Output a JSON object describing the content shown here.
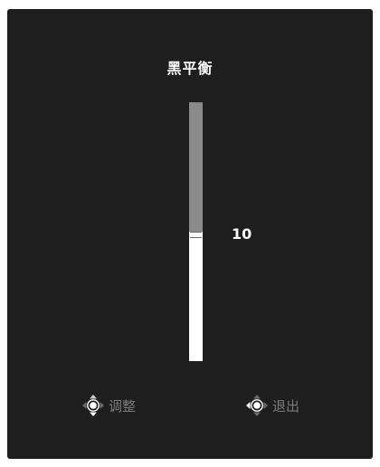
{
  "menu": {
    "title": "黑平衡"
  },
  "slider": {
    "value": "10",
    "level_fraction": 0.5,
    "handle_fraction": 0.5
  },
  "hints": {
    "adjust_label": "调整",
    "exit_label": "退出",
    "adjust_icon": "joystick-vertical-icon",
    "exit_icon": "joystick-press-icon"
  },
  "colors": {
    "panel_bg": "#1e1e1e",
    "text": "#ffffff",
    "hint_text": "#7a7a7a",
    "slider_upper": "#8a8a8a",
    "slider_lower": "#ffffff",
    "accent": "#1479c8"
  }
}
